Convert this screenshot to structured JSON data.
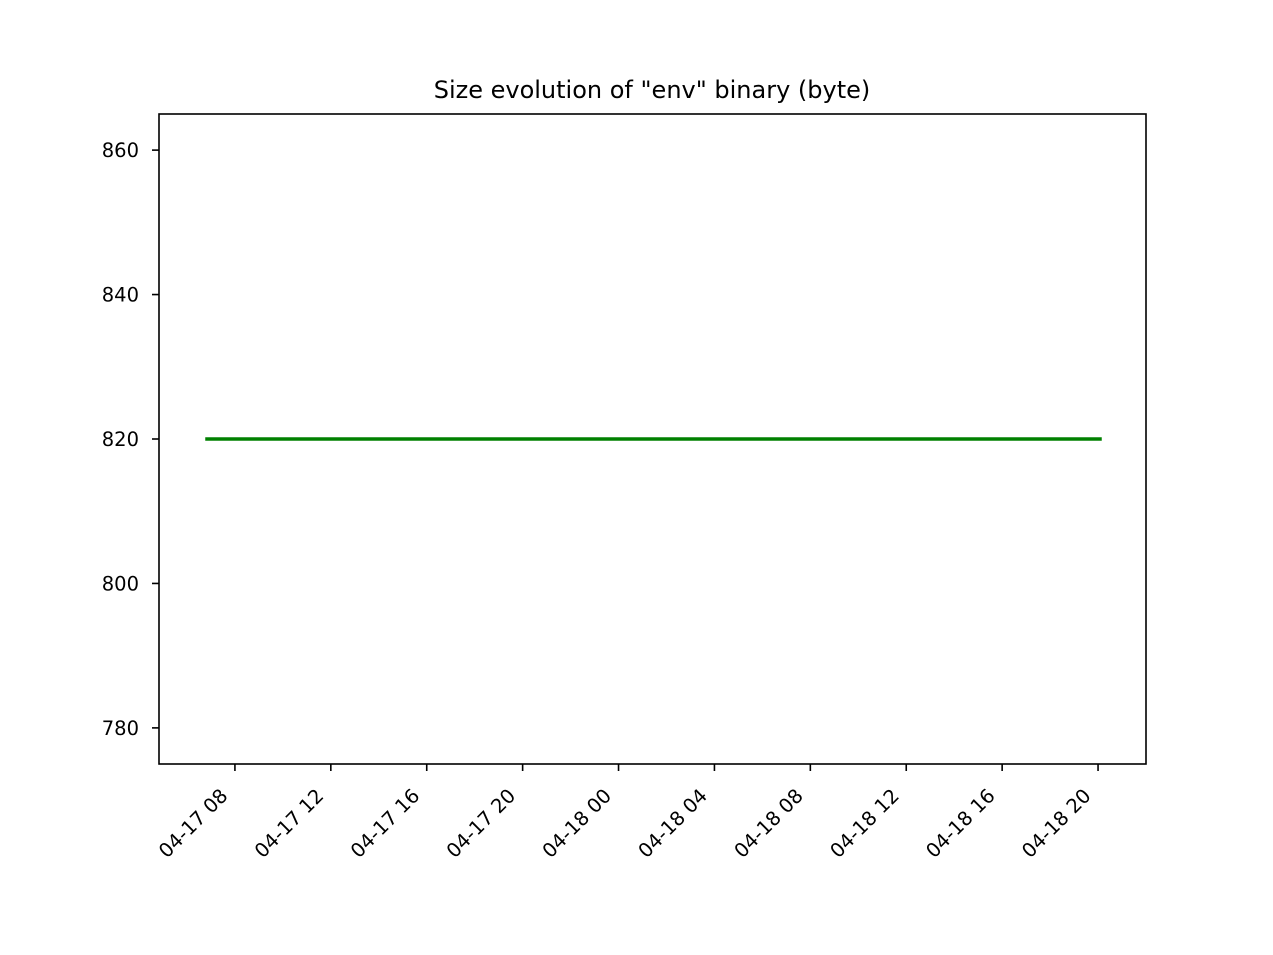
{
  "chart_data": {
    "type": "line",
    "title": "Size evolution of \"env\" binary (byte)",
    "xlabel": "",
    "ylabel": "",
    "x_ticks": [
      "04-17 08",
      "04-17 12",
      "04-17 16",
      "04-17 20",
      "04-18 00",
      "04-18 04",
      "04-18 08",
      "04-18 12",
      "04-18 16",
      "04-18 20"
    ],
    "xlim": [
      "04-17 04:50",
      "04-18 22:00"
    ],
    "y_ticks": [
      780,
      800,
      820,
      840,
      860
    ],
    "ylim": [
      775,
      865
    ],
    "grid": false,
    "series": [
      {
        "color": "#008000",
        "points": [
          {
            "x": "04-17 06:50",
            "y": 820
          },
          {
            "x": "04-18 20:05",
            "y": 820
          }
        ]
      }
    ]
  }
}
